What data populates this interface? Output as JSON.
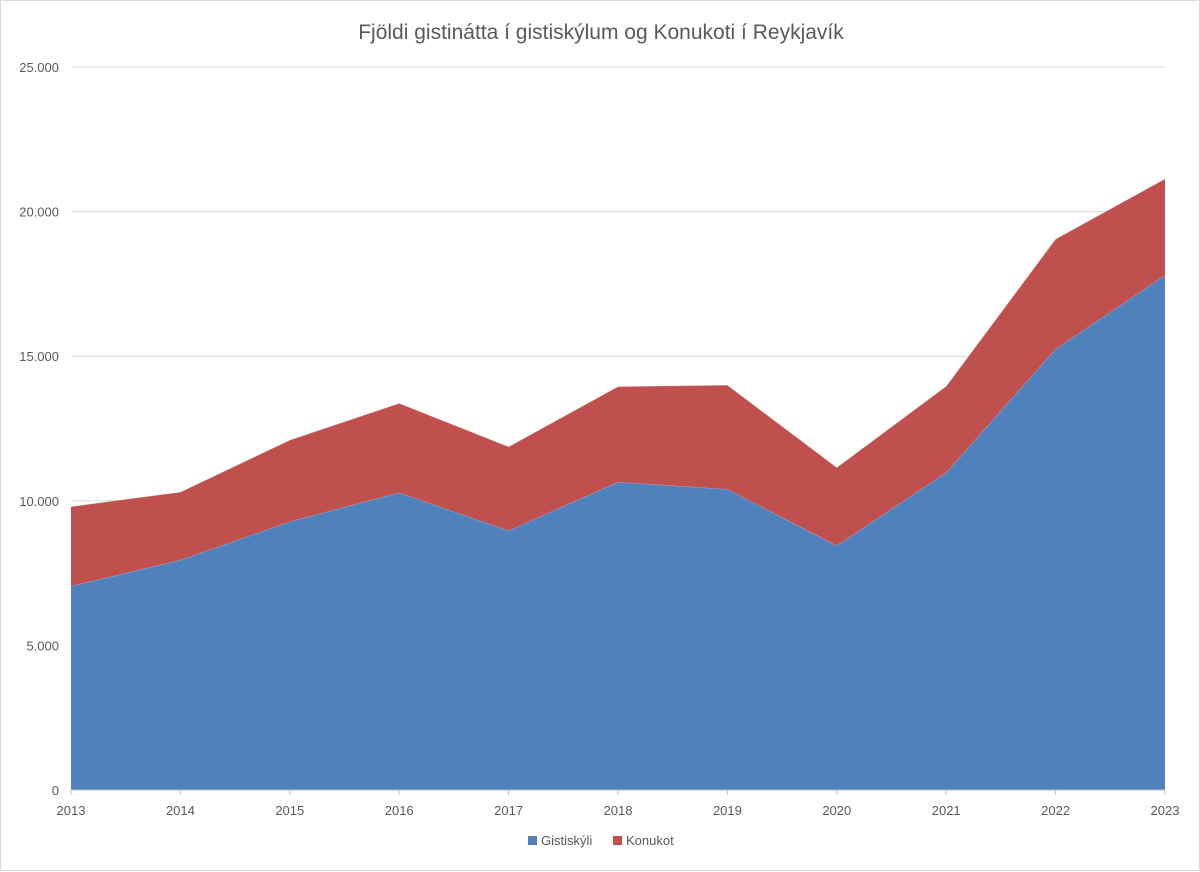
{
  "chart_data": {
    "type": "area",
    "stacked": true,
    "title": "Fjöldi gistinátta í gistiskýlum og Konukoti  í Reykjavík",
    "xlabel": "",
    "ylabel": "",
    "categories": [
      "2013",
      "2014",
      "2015",
      "2016",
      "2017",
      "2018",
      "2019",
      "2020",
      "2021",
      "2022",
      "2023"
    ],
    "ylim": [
      0,
      25000
    ],
    "yticks": [
      0,
      5000,
      10000,
      15000,
      20000,
      25000
    ],
    "ytick_labels": [
      "0",
      "5.000",
      "10.000",
      "15.000",
      "20.000",
      "25.000"
    ],
    "grid": true,
    "legend_position": "bottom",
    "series": [
      {
        "name": "Gistiskýli",
        "color": "#4f81bd",
        "values": [
          7050,
          7950,
          9280,
          10280,
          8970,
          10650,
          10400,
          8450,
          10980,
          15250,
          17800
        ]
      },
      {
        "name": "Konukot",
        "color": "#c0504d",
        "values": [
          2750,
          2350,
          2820,
          3090,
          2900,
          3300,
          3600,
          2700,
          2980,
          3800,
          3330
        ]
      }
    ]
  }
}
